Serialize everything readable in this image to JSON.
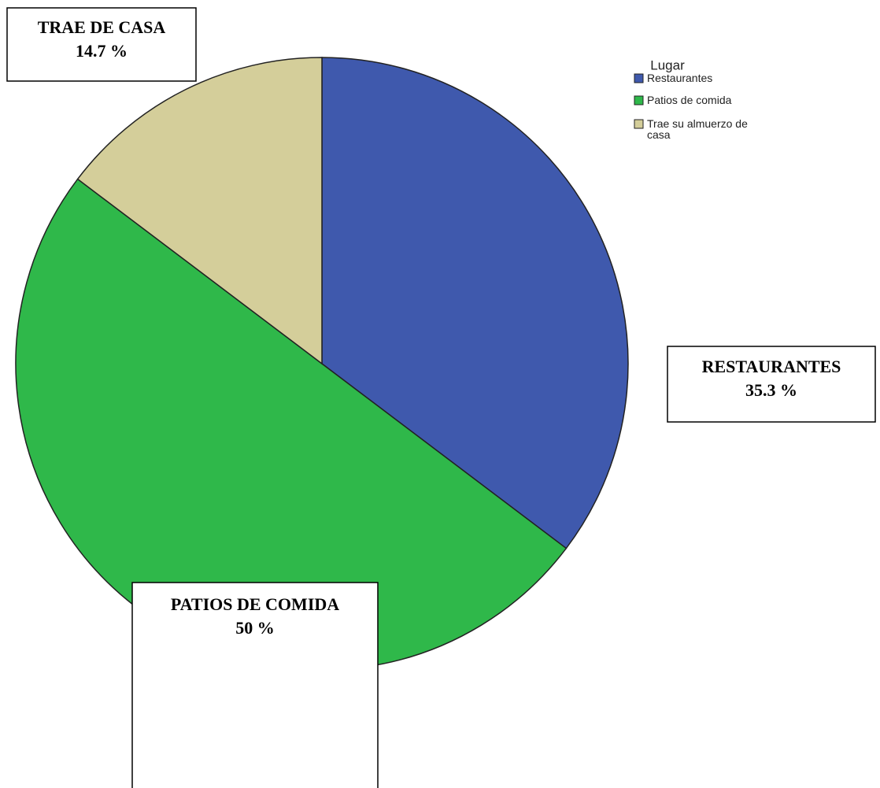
{
  "chart_data": {
    "type": "pie",
    "legend_title": "Lugar",
    "categories": [
      "Restaurantes",
      "Patios de comida",
      "Trae su almuerzo de casa"
    ],
    "slice_labels": [
      "RESTAURANTES",
      "PATIOS DE COMIDA",
      "TRAE DE CASA"
    ],
    "values": [
      35.3,
      50,
      14.7
    ],
    "value_labels": [
      "35.3 %",
      "50 %",
      "14.7 %"
    ],
    "colors": [
      "#3f59ad",
      "#2fb84a",
      "#d4ce9a"
    ],
    "legend": "upper right"
  }
}
